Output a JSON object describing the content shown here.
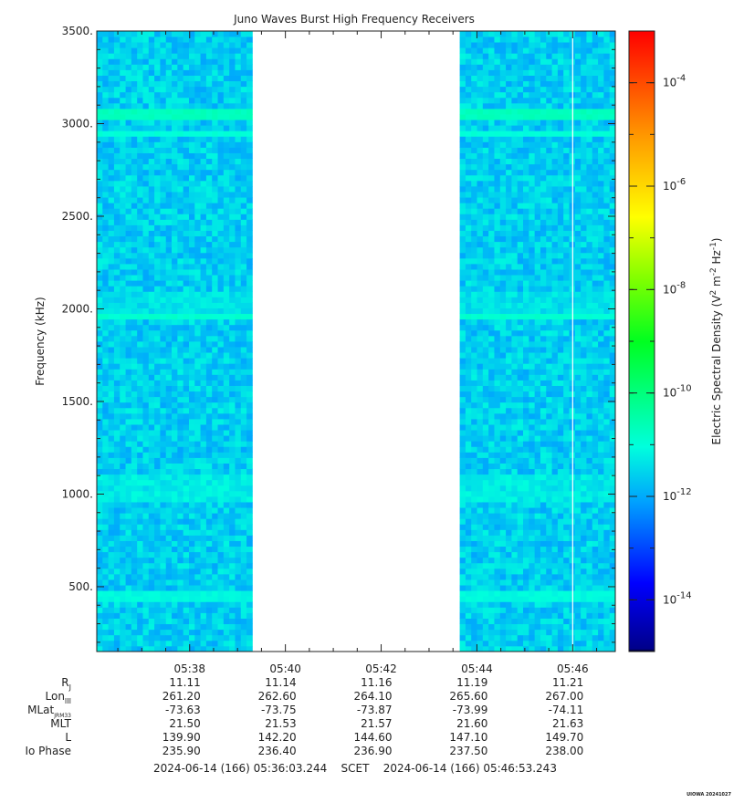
{
  "chart_data": {
    "type": "heatmap",
    "title": "Juno Waves Burst High Frequency Receivers",
    "ylabel": "Frequency (kHz)",
    "ylim": [
      150,
      3500
    ],
    "y_ticks": [
      "500.",
      "1000.",
      "1500.",
      "2000.",
      "2500.",
      "3000.",
      "3500."
    ],
    "y_tick_values": [
      500,
      1000,
      1500,
      2000,
      2500,
      3000,
      3500
    ],
    "x_range_minutes": [
      36.06,
      46.89
    ],
    "x_ticks": [
      "05:38",
      "05:40",
      "05:42",
      "05:44",
      "05:46"
    ],
    "x_tick_minutes": [
      38,
      40,
      42,
      44,
      46
    ],
    "data_gap_minutes": [
      39.35,
      43.62
    ],
    "background_level_log10": -11.6,
    "emission_lines": [
      {
        "freq_khz": 3050,
        "log10_level": -10.7
      },
      {
        "freq_khz": 2955,
        "log10_level": -11.0
      },
      {
        "freq_khz": 1970,
        "log10_level": -10.9
      },
      {
        "freq_khz": 450,
        "log10_level": -11.1
      }
    ],
    "broad_bands": [
      {
        "freq_min_khz": 950,
        "freq_max_khz": 1100,
        "log10_level": -11.3
      },
      {
        "freq_min_khz": 1980,
        "freq_max_khz": 2090,
        "log10_level": -11.4
      }
    ],
    "colorbar": {
      "label_prefix": "Electric Spectral Density (V",
      "label_mid1": " m",
      "label_mid2": " Hz",
      "label_suffix": ")",
      "sup2": "2",
      "sup_m2": "-2",
      "sup_m1": "-1",
      "log_range": [
        -15,
        -3
      ],
      "tick_base": "10",
      "tick_exponents": [
        "-4",
        "-6",
        "-8",
        "-10",
        "-12",
        "-14"
      ],
      "tick_values": [
        -4,
        -6,
        -8,
        -10,
        -12,
        -14
      ]
    },
    "ephemeris": {
      "rows": [
        {
          "label": "R",
          "sub": "J",
          "values": [
            "11.11",
            "11.14",
            "11.16",
            "11.19",
            "11.21"
          ]
        },
        {
          "label": "Lon",
          "sub": "III",
          "values": [
            "261.20",
            "262.60",
            "264.10",
            "265.60",
            "267.00"
          ]
        },
        {
          "label": "MLat",
          "sub": "JRM33",
          "values": [
            "-73.63",
            "-73.75",
            "-73.87",
            "-73.99",
            "-74.11"
          ]
        },
        {
          "label": "MLT",
          "sub": "",
          "values": [
            "21.50",
            "21.53",
            "21.57",
            "21.60",
            "21.63"
          ]
        },
        {
          "label": "L",
          "sub": "",
          "values": [
            "139.90",
            "142.20",
            "144.60",
            "147.10",
            "149.70"
          ]
        },
        {
          "label": "Io Phase",
          "sub": "",
          "values": [
            "235.90",
            "236.40",
            "236.90",
            "237.50",
            "238.00"
          ]
        }
      ]
    },
    "time_range_text": "2024-06-14 (166) 05:36:03.244    SCET    2024-06-14 (166) 05:46:53.243",
    "credit": "UIOWA 20241027"
  }
}
